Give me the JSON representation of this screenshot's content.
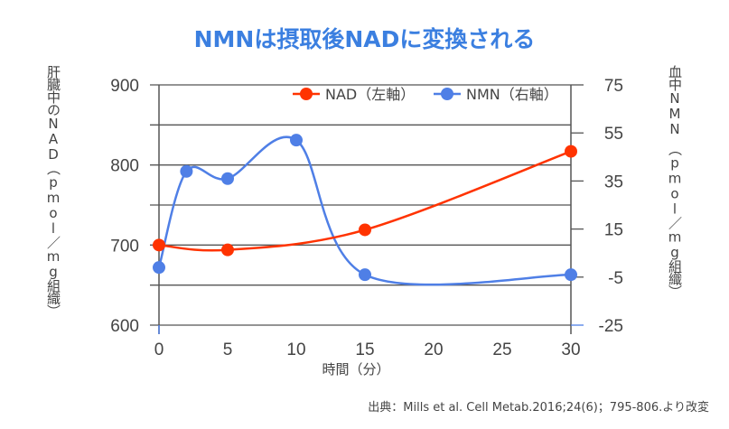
{
  "title": "NMNは摂取後NADに変換される",
  "footer": "出典：Mills et al. Cell Metab.2016;24(6)；795-806.より改変",
  "chart_data": {
    "type": "line",
    "title": "NMNは摂取後NADに変換される",
    "xlabel": "時間（分）",
    "ylabel_left": "肝臓中のNAD（pmol／mg組織）",
    "ylabel_right": "血中NMN　（pmol／mg組織）",
    "x_ticks": [
      0,
      5,
      10,
      15,
      20,
      25,
      30
    ],
    "xlim": [
      0,
      30
    ],
    "ylim_left": [
      600,
      900
    ],
    "y_ticks_left": [
      600,
      700,
      800,
      900
    ],
    "ylim_right": [
      -25,
      75
    ],
    "y_ticks_right": [
      -25,
      -5,
      15,
      35,
      55,
      75
    ],
    "grid": true,
    "legend_position": "top-right",
    "series": [
      {
        "name": "NAD（左軸）",
        "axis": "left",
        "color": "#ff3300",
        "x": [
          0,
          5,
          15,
          30
        ],
        "y": [
          700,
          694,
          719,
          817
        ]
      },
      {
        "name": "NMN（右軸）",
        "axis": "right",
        "color": "#4f7fe6",
        "x": [
          0,
          2,
          5,
          10,
          15,
          30
        ],
        "y": [
          -1,
          39,
          36,
          52,
          -4,
          -4
        ]
      }
    ]
  }
}
